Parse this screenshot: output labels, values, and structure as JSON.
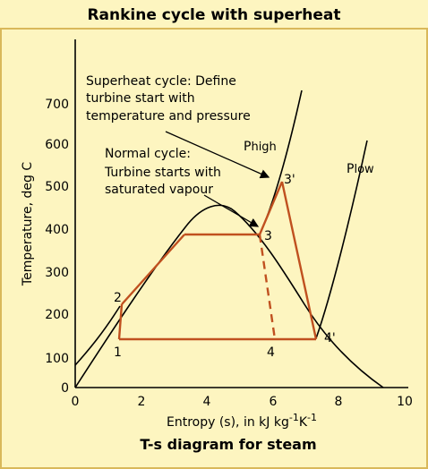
{
  "title": "Rankine cycle with superheat",
  "caption": "T-s diagram for steam",
  "axes": {
    "y_label": "Temperature, deg C",
    "x_label_main": "Entropy (s), in kJ kg",
    "x_label_sup1": "-1",
    "x_label_k": "K",
    "x_label_sup2": "-1",
    "y_ticks": [
      "0",
      "100",
      "200",
      "300",
      "400",
      "500",
      "600",
      "700"
    ],
    "x_ticks": [
      "0",
      "2",
      "4",
      "6",
      "8",
      "10"
    ]
  },
  "annotations": {
    "superheat_line1": "Superheat cycle: Define",
    "superheat_line2": "turbine start with",
    "superheat_line3": "temperature and pressure",
    "normal_line1": "Normal cycle:",
    "normal_line2": "Turbine starts with",
    "normal_line3": "saturated vapour",
    "p_high_main": "P",
    "p_high_sub": "high",
    "p_low_main": "P",
    "p_low_sub": "low"
  },
  "points": {
    "p1": "1",
    "p2": "2",
    "p3": "3",
    "p3prime": "3'",
    "p4": "4",
    "p4prime": "4'"
  },
  "colors": {
    "background": "#fdf5c0",
    "frame": "#d9b85a",
    "cycle": "#c0501f",
    "curve": "#000000"
  }
}
